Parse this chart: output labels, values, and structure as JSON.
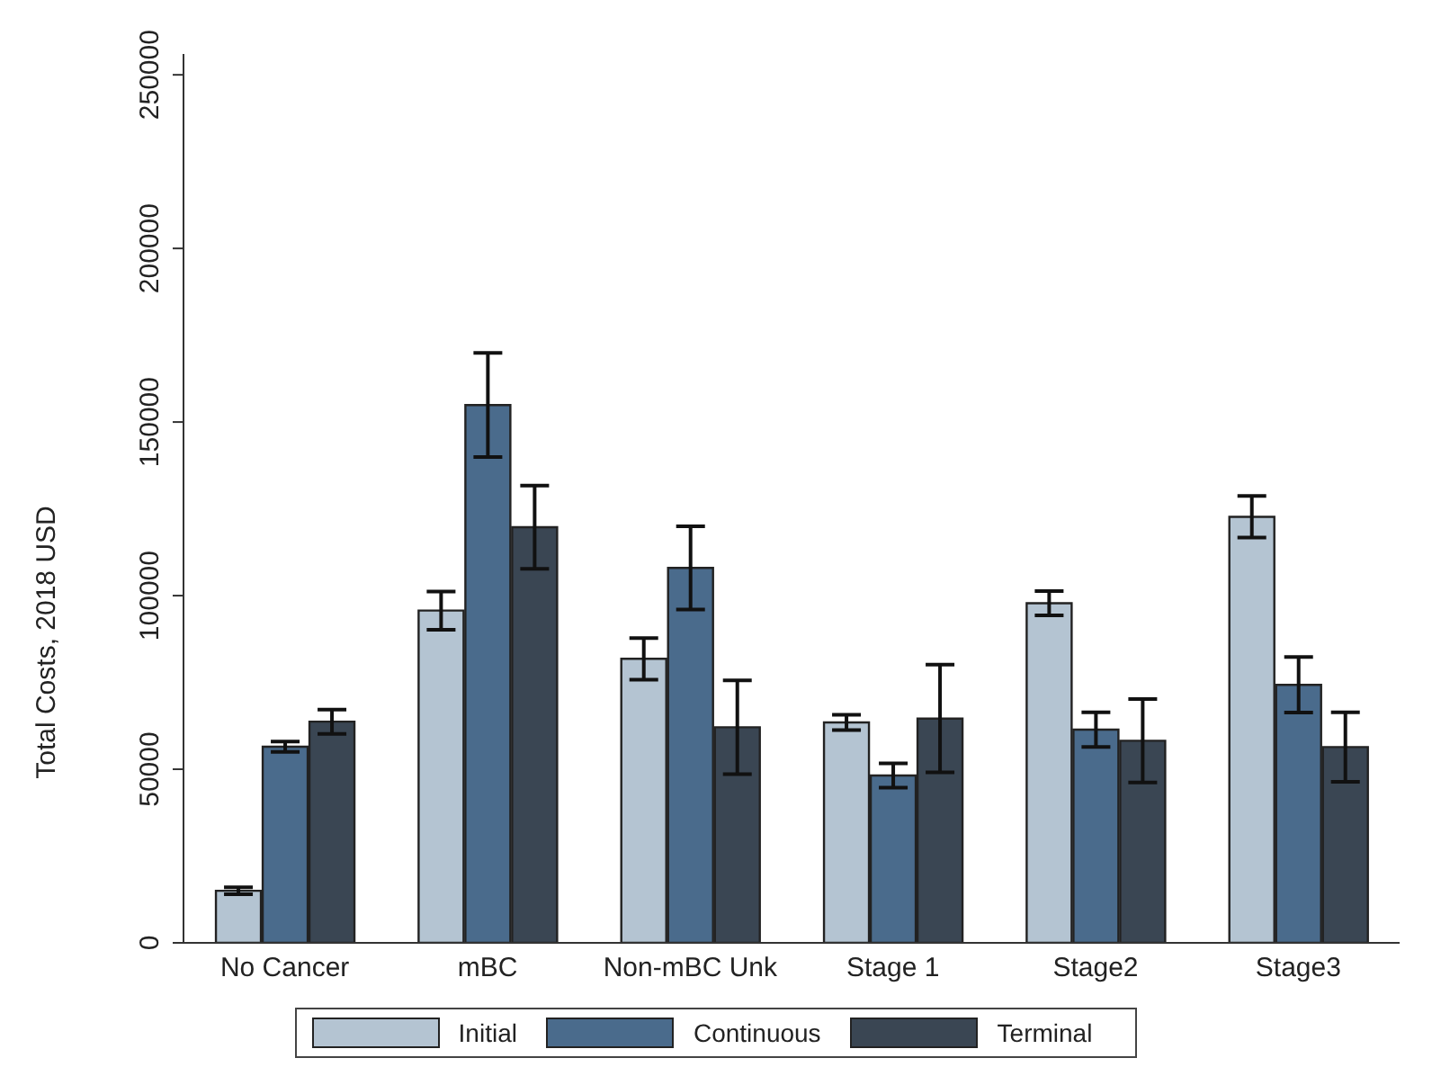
{
  "chart_data": {
    "type": "bar",
    "ylabel": "Total Costs, 2018 USD",
    "categories": [
      "No Cancer",
      "mBC",
      "Non-mBC Unk",
      "Stage 1",
      "Stage2",
      "Stage3"
    ],
    "series": [
      {
        "name": "Initial",
        "color": "#b4c4d2",
        "values": [
          15000,
          95700,
          81800,
          63500,
          97800,
          122700
        ],
        "errors": [
          1000,
          5500,
          6000,
          2200,
          3500,
          6000
        ]
      },
      {
        "name": "Continuous",
        "color": "#4a6b8c",
        "values": [
          56500,
          154900,
          108000,
          48200,
          61400,
          74300
        ],
        "errors": [
          1500,
          15000,
          12000,
          3500,
          5000,
          8000
        ]
      },
      {
        "name": "Terminal",
        "color": "#3a4653",
        "values": [
          63700,
          119700,
          62100,
          64600,
          58200,
          56400
        ],
        "errors": [
          3500,
          12000,
          13500,
          15500,
          12000,
          10000
        ]
      }
    ],
    "ylim": [
      0,
      256000
    ],
    "yticks": [
      0,
      50000,
      100000,
      150000,
      200000,
      250000
    ],
    "grid": false,
    "legend": "bottom"
  }
}
